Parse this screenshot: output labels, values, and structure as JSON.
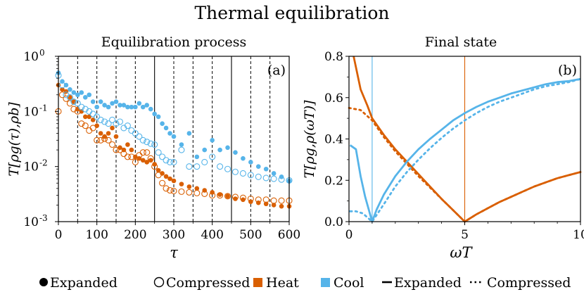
{
  "figure": {
    "title": "Thermal equilibration"
  },
  "colors": {
    "heat": "#d95f02",
    "cool": "#56b4e9",
    "axis": "#000000"
  },
  "legend": {
    "expanded_marker": "Expanded",
    "compressed_marker": "Compressed",
    "heat": "Heat",
    "cool": "Cool",
    "expanded_line": "Expanded",
    "compressed_line": "Compressed"
  },
  "chart_data": [
    {
      "type": "scatter",
      "title": "Equilibration process",
      "panel_label": "(a)",
      "xlabel": "τ",
      "ylabel": "T[ρg(τ),ρb]",
      "yscale": "log",
      "xlim": [
        0,
        600
      ],
      "ylim": [
        0.001,
        1
      ],
      "xticks": [
        "0",
        "100",
        "200",
        "300",
        "400",
        "500",
        "600"
      ],
      "yticks": [
        "10^0",
        "10^-1",
        "10^-2",
        "10^-3"
      ],
      "vlines_dashed": [
        50,
        100,
        150,
        200,
        300,
        350,
        400,
        500,
        550
      ],
      "vlines_solid": [
        250,
        450
      ],
      "series": [
        {
          "name": "Heat Expanded",
          "marker": "filled",
          "x": [
            0,
            10,
            20,
            30,
            40,
            50,
            60,
            70,
            80,
            90,
            100,
            110,
            120,
            130,
            140,
            150,
            160,
            170,
            180,
            190,
            200,
            210,
            220,
            230,
            240,
            250,
            260,
            270,
            280,
            290,
            300,
            320,
            340,
            360,
            380,
            400,
            420,
            440,
            460,
            480,
            500,
            520,
            540,
            560,
            580,
            600
          ],
          "y": [
            0.3,
            0.25,
            0.23,
            0.18,
            0.15,
            0.11,
            0.1,
            0.08,
            0.08,
            0.07,
            0.055,
            0.04,
            0.035,
            0.04,
            0.05,
            0.035,
            0.022,
            0.02,
            0.025,
            0.02,
            0.015,
            0.014,
            0.013,
            0.012,
            0.013,
            0.011,
            0.0085,
            0.0075,
            0.0066,
            0.006,
            0.0055,
            0.0048,
            0.0043,
            0.004,
            0.0037,
            0.0034,
            0.0031,
            0.0029,
            0.0026,
            0.0025,
            0.0023,
            0.0022,
            0.0021,
            0.002,
            0.0019,
            0.0019
          ]
        },
        {
          "name": "Heat Compressed",
          "marker": "open",
          "x": [
            0,
            10,
            20,
            30,
            40,
            50,
            60,
            70,
            80,
            90,
            100,
            110,
            120,
            130,
            140,
            150,
            160,
            170,
            180,
            190,
            200,
            210,
            220,
            230,
            240,
            250,
            260,
            270,
            280,
            290,
            300,
            320,
            340,
            360,
            380,
            400,
            420,
            440,
            460,
            480,
            500,
            520,
            540,
            560,
            580,
            600
          ],
          "y": [
            0.1,
            0.2,
            0.17,
            0.14,
            0.11,
            0.1,
            0.06,
            0.055,
            0.045,
            0.05,
            0.03,
            0.03,
            0.032,
            0.03,
            0.025,
            0.02,
            0.02,
            0.017,
            0.015,
            0.015,
            0.012,
            0.016,
            0.018,
            0.018,
            0.014,
            0.01,
            0.007,
            0.005,
            0.004,
            0.0037,
            0.0036,
            0.0035,
            0.0034,
            0.0033,
            0.0032,
            0.003,
            0.003,
            0.0029,
            0.0028,
            0.0027,
            0.0026,
            0.0025,
            0.0025,
            0.0024,
            0.0024,
            0.0024
          ]
        },
        {
          "name": "Cool Expanded",
          "marker": "filled",
          "x": [
            0,
            10,
            20,
            30,
            40,
            50,
            60,
            70,
            80,
            90,
            100,
            110,
            120,
            130,
            140,
            150,
            160,
            170,
            180,
            190,
            200,
            210,
            220,
            230,
            240,
            250,
            260,
            270,
            280,
            290,
            300,
            320,
            340,
            360,
            380,
            400,
            420,
            440,
            460,
            480,
            500,
            520,
            540,
            560,
            580,
            600
          ],
          "y": [
            0.5,
            0.35,
            0.3,
            0.25,
            0.22,
            0.2,
            0.22,
            0.18,
            0.2,
            0.15,
            0.12,
            0.15,
            0.13,
            0.12,
            0.14,
            0.15,
            0.13,
            0.13,
            0.12,
            0.12,
            0.12,
            0.14,
            0.12,
            0.13,
            0.11,
            0.09,
            0.08,
            0.06,
            0.05,
            0.04,
            0.035,
            0.025,
            0.04,
            0.015,
            0.02,
            0.03,
            0.02,
            0.022,
            0.018,
            0.014,
            0.012,
            0.01,
            0.009,
            0.0075,
            0.0065,
            0.0055
          ]
        },
        {
          "name": "Cool Compressed",
          "marker": "open",
          "x": [
            0,
            10,
            20,
            30,
            40,
            50,
            60,
            70,
            80,
            90,
            100,
            110,
            120,
            130,
            140,
            150,
            160,
            170,
            180,
            190,
            200,
            210,
            220,
            230,
            240,
            250,
            260,
            270,
            280,
            290,
            300,
            320,
            340,
            360,
            380,
            400,
            420,
            440,
            460,
            480,
            500,
            520,
            540,
            560,
            580,
            600
          ],
          "y": [
            0.45,
            0.3,
            0.2,
            0.18,
            0.15,
            0.14,
            0.12,
            0.11,
            0.1,
            0.09,
            0.08,
            0.07,
            0.065,
            0.06,
            0.07,
            0.06,
            0.065,
            0.05,
            0.055,
            0.045,
            0.04,
            0.035,
            0.03,
            0.028,
            0.026,
            0.025,
            0.018,
            0.015,
            0.013,
            0.012,
            0.012,
            0.02,
            0.01,
            0.01,
            0.012,
            0.015,
            0.01,
            0.009,
            0.008,
            0.0075,
            0.007,
            0.0065,
            0.0062,
            0.006,
            0.0058,
            0.0056
          ]
        }
      ]
    },
    {
      "type": "line",
      "title": "Final state",
      "panel_label": "(b)",
      "xlabel": "ωT",
      "ylabel": "T[ρg,ρ(ωT)]",
      "xlim": [
        0,
        10
      ],
      "ylim": [
        0,
        0.8
      ],
      "xticks": [
        "0",
        "5",
        "10"
      ],
      "yticks": [
        "0.0",
        "0.2",
        "0.4",
        "0.6",
        "0.8"
      ],
      "vlines": [
        {
          "x": 1,
          "series": "Cool"
        },
        {
          "x": 5,
          "series": "Heat"
        }
      ],
      "series": [
        {
          "name": "Heat Expanded",
          "style": "solid",
          "x": [
            0.2,
            0.5,
            0.8,
            1,
            1.5,
            2,
            2.5,
            3,
            3.5,
            4,
            4.5,
            5,
            5.5,
            6,
            6.5,
            7,
            7.5,
            8,
            8.5,
            9,
            9.5,
            10
          ],
          "y": [
            0.8,
            0.64,
            0.56,
            0.5,
            0.42,
            0.35,
            0.29,
            0.23,
            0.17,
            0.11,
            0.055,
            0.0,
            0.035,
            0.065,
            0.095,
            0.12,
            0.145,
            0.17,
            0.19,
            0.21,
            0.225,
            0.24
          ]
        },
        {
          "name": "Heat Compressed",
          "style": "dotted",
          "x": [
            0,
            0.5,
            1,
            1.5,
            2,
            2.5,
            3,
            3.5,
            4,
            4.5,
            5,
            5.5,
            6,
            6.5,
            7,
            7.5,
            8,
            8.5,
            9,
            9.5,
            10
          ],
          "y": [
            0.55,
            0.54,
            0.49,
            0.41,
            0.34,
            0.28,
            0.22,
            0.165,
            0.11,
            0.055,
            0.0,
            0.035,
            0.065,
            0.095,
            0.12,
            0.145,
            0.17,
            0.19,
            0.21,
            0.225,
            0.24
          ]
        },
        {
          "name": "Cool Expanded",
          "style": "solid",
          "x": [
            0.05,
            0.3,
            0.5,
            0.7,
            0.9,
            1,
            1.2,
            1.5,
            2,
            2.5,
            3,
            3.5,
            4,
            4.5,
            5,
            5.5,
            6,
            6.5,
            7,
            7.5,
            8,
            8.5,
            9,
            9.5,
            10
          ],
          "y": [
            0.37,
            0.35,
            0.22,
            0.12,
            0.04,
            0.0,
            0.06,
            0.13,
            0.22,
            0.29,
            0.35,
            0.4,
            0.445,
            0.49,
            0.525,
            0.555,
            0.58,
            0.6,
            0.62,
            0.635,
            0.65,
            0.665,
            0.675,
            0.68,
            0.69
          ]
        },
        {
          "name": "Cool Compressed",
          "style": "dotted",
          "x": [
            0.05,
            0.3,
            0.6,
            0.8,
            1,
            1.3,
            1.6,
            2,
            2.5,
            3,
            3.5,
            4,
            4.5,
            5,
            5.5,
            6,
            6.5,
            7,
            7.5,
            8,
            8.5,
            9,
            9.5,
            10
          ],
          "y": [
            0.05,
            0.05,
            0.04,
            0.02,
            0.0,
            0.05,
            0.1,
            0.17,
            0.24,
            0.3,
            0.355,
            0.405,
            0.45,
            0.49,
            0.525,
            0.555,
            0.58,
            0.6,
            0.62,
            0.64,
            0.655,
            0.665,
            0.675,
            0.69
          ]
        }
      ]
    }
  ]
}
